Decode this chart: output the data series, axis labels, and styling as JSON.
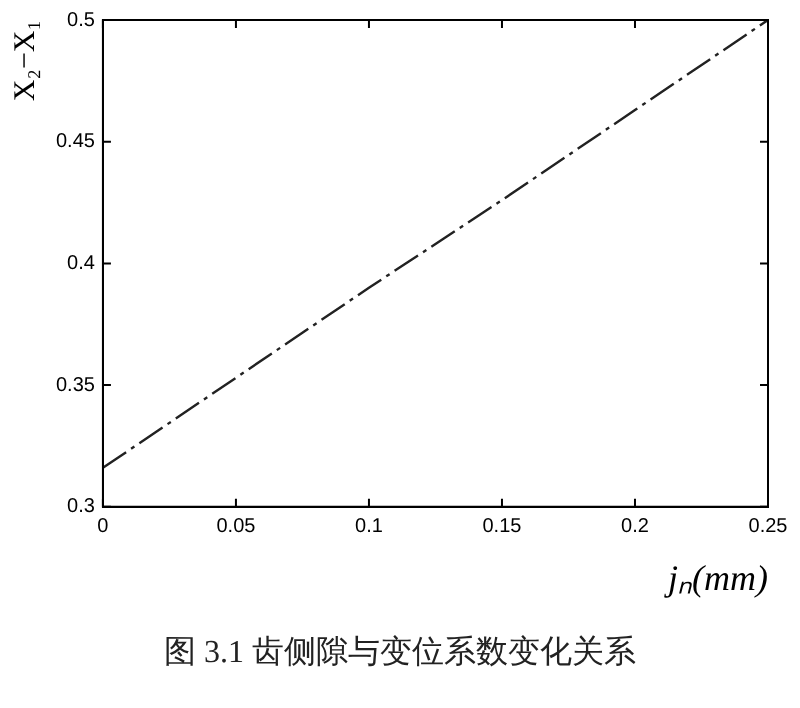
{
  "chart_data": {
    "type": "line",
    "xlabel": "jₙ(mm)",
    "ylabel": "X₂−X₁",
    "annotations": [
      "图 3.1  齿侧隙与变位系数变化关系"
    ],
    "x": [
      0,
      0.05,
      0.1,
      0.15,
      0.2,
      0.25
    ],
    "series": [
      {
        "color": "#222222",
        "values": [
          0.316,
          0.353,
          0.39,
          0.426,
          0.463,
          0.5
        ]
      }
    ],
    "xlim": [
      0,
      0.25
    ],
    "xticks": [
      0,
      0.05,
      0.1,
      0.15,
      0.2,
      0.25
    ],
    "ylim": [
      0.3,
      0.5
    ],
    "yticks": [
      0.3,
      0.35,
      0.4,
      0.45,
      0.5
    ],
    "grid": false,
    "legend": false,
    "marker": "none",
    "line_style": "dashed"
  }
}
